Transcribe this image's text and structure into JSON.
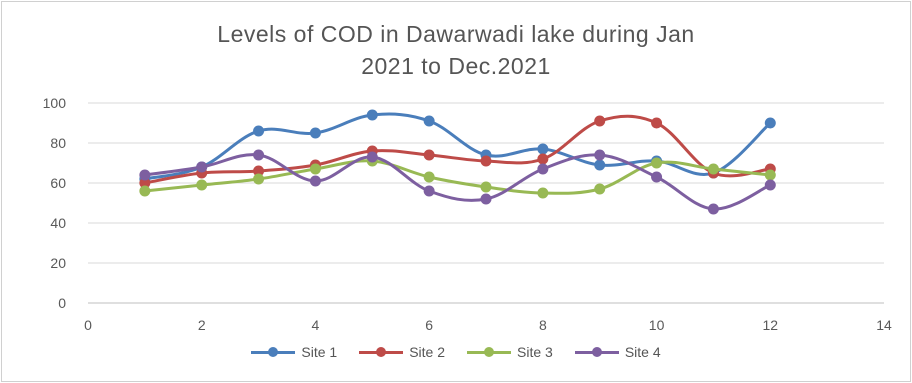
{
  "chart_data": {
    "type": "line",
    "title_line1": "Levels of COD in Dawarwadi lake during  Jan",
    "title_line2": "2021 to Dec.2021",
    "xlim": [
      0,
      14
    ],
    "ylim": [
      0,
      100
    ],
    "x_ticks": [
      0,
      2,
      4,
      6,
      8,
      10,
      12,
      14
    ],
    "y_ticks": [
      0,
      20,
      40,
      60,
      80,
      100
    ],
    "grid": "horizontal",
    "legend_position": "bottom",
    "smooth": true,
    "x": [
      1,
      2,
      3,
      4,
      5,
      6,
      7,
      8,
      9,
      10,
      11,
      12
    ],
    "series": [
      {
        "name": "Site 1",
        "color": "#4a7ebb",
        "values": [
          62,
          68,
          86,
          85,
          94,
          91,
          74,
          77,
          69,
          71,
          65,
          90
        ]
      },
      {
        "name": "Site 2",
        "color": "#be4b48",
        "values": [
          60,
          65,
          66,
          69,
          76,
          74,
          71,
          72,
          91,
          90,
          65,
          67
        ]
      },
      {
        "name": "Site 3",
        "color": "#98b954",
        "values": [
          56,
          59,
          62,
          67,
          71,
          63,
          58,
          55,
          57,
          70,
          67,
          64
        ]
      },
      {
        "name": "Site 4",
        "color": "#7d5fa0",
        "values": [
          64,
          68,
          74,
          61,
          73,
          56,
          52,
          67,
          74,
          63,
          47,
          59
        ]
      }
    ]
  }
}
